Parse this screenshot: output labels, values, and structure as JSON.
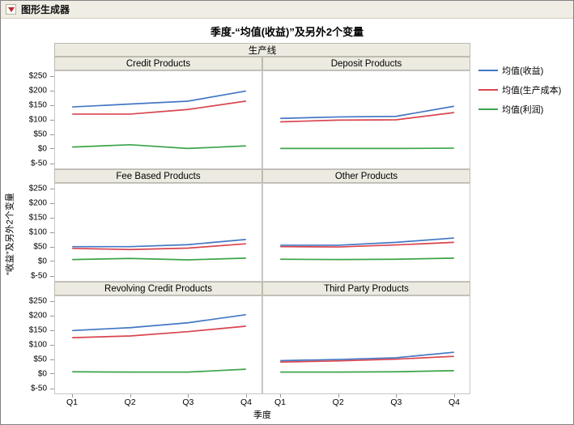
{
  "window": {
    "title": "图形生成器"
  },
  "chart_data": {
    "type": "line",
    "title": "季度-“均值(收益)”及另外2个变量",
    "group_label": "生产线",
    "xlabel": "季度",
    "ylabel": "“收益”及另外2个变量",
    "categories": [
      "Q1",
      "Q2",
      "Q3",
      "Q4"
    ],
    "ylim": [
      -50,
      250
    ],
    "ytick_values": [
      250,
      200,
      150,
      100,
      50,
      0,
      -50
    ],
    "yticks": [
      "$250",
      "$200",
      "$150",
      "$100",
      "$50",
      "$0",
      "$-50"
    ],
    "grid": false,
    "legend_position": "right",
    "legend": [
      {
        "name": "均值(收益)",
        "color": "#4477c4"
      },
      {
        "name": "均值(生产成本)",
        "color": "#d9454e"
      },
      {
        "name": "均值(利润)",
        "color": "#3ba449"
      }
    ],
    "panels": [
      {
        "name": "Credit Products",
        "series": [
          [
            145,
            155,
            165,
            200
          ],
          [
            120,
            120,
            136,
            165
          ],
          [
            5,
            13,
            0,
            9
          ]
        ]
      },
      {
        "name": "Deposit Products",
        "series": [
          [
            105,
            110,
            112,
            147
          ],
          [
            93,
            99,
            100,
            125
          ],
          [
            0,
            0,
            0,
            1
          ]
        ]
      },
      {
        "name": "Fee Based Products",
        "series": [
          [
            50,
            50,
            57,
            75
          ],
          [
            44,
            40,
            45,
            60
          ],
          [
            5,
            9,
            4,
            10
          ]
        ]
      },
      {
        "name": "Other Products",
        "series": [
          [
            55,
            55,
            65,
            80
          ],
          [
            50,
            49,
            56,
            65
          ],
          [
            6,
            5,
            6,
            10
          ]
        ]
      },
      {
        "name": "Revolving Credit Products",
        "series": [
          [
            150,
            160,
            177,
            205
          ],
          [
            125,
            131,
            146,
            165
          ],
          [
            6,
            5,
            5,
            15
          ]
        ]
      },
      {
        "name": "Third Party Products",
        "series": [
          [
            45,
            49,
            55,
            74
          ],
          [
            40,
            44,
            50,
            60
          ],
          [
            5,
            5,
            6,
            10
          ]
        ]
      }
    ]
  }
}
